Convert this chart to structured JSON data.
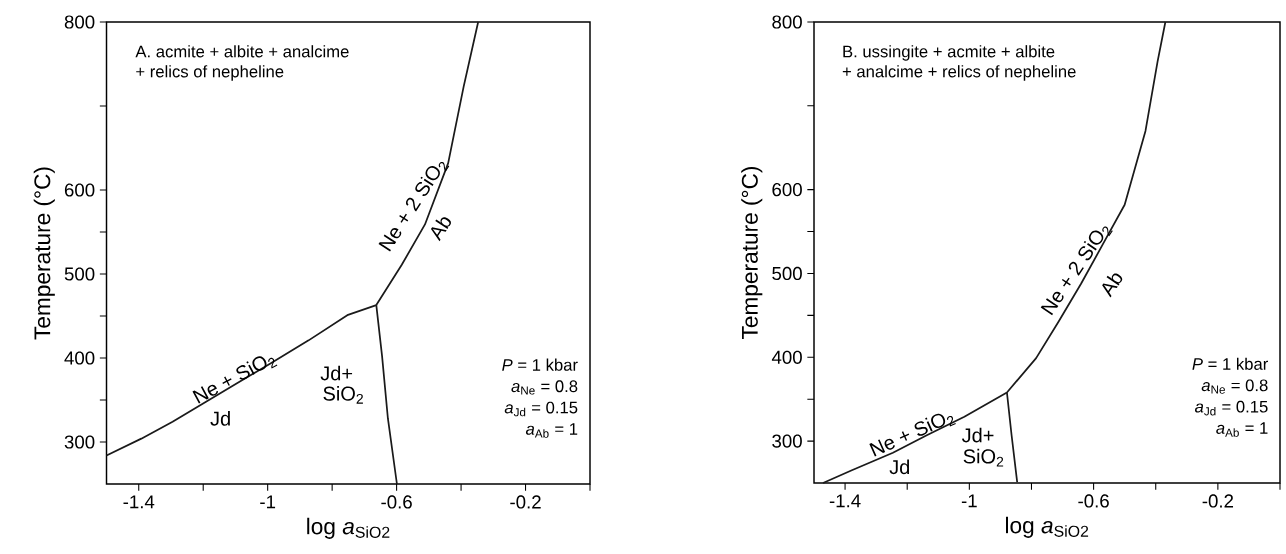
{
  "chart_data": [
    {
      "type": "line",
      "title": "A. acmite + albite + analcime",
      "subtitle": "+ relics of nepheline",
      "xlabel": "log *a*$_{SiO2}$",
      "ylabel": "Temperature (°C)",
      "series": [
        {
          "color": "#1a1a1a",
          "x": [
            -1.5,
            -1.392,
            -1.295,
            -1.199,
            -1.09,
            -0.994,
            -0.873,
            -0.753,
            -0.663
          ],
          "values": [
            284,
            304,
            324,
            346,
            371,
            393,
            421,
            451,
            463
          ]
        },
        {
          "color": "#1a1a1a",
          "x": [
            -0.663,
            -0.584,
            -0.512,
            -0.44,
            -0.392,
            -0.347
          ],
          "values": [
            463,
            511,
            559,
            632,
            723,
            800
          ]
        },
        {
          "color": "#1a1a1a",
          "x": [
            -0.663,
            -0.645,
            -0.627,
            -0.599
          ],
          "values": [
            463,
            402,
            328,
            250
          ]
        }
      ],
      "xlim": [
        -1.5,
        0
      ],
      "ylim": [
        250,
        800
      ],
      "xticks": [
        -1.4,
        {
          "value": -1.2,
          "label": null
        },
        -1,
        {
          "value": -0.8,
          "label": null
        },
        -0.6,
        {
          "value": -0.4,
          "label": null
        },
        -0.2,
        {
          "value": 0,
          "label": null
        }
      ],
      "yticks": [
        300,
        {
          "value": 350,
          "label": null
        },
        400,
        {
          "value": 450,
          "label": null
        },
        500,
        {
          "value": 550,
          "label": null
        },
        600,
        {
          "value": 700,
          "label": null
        },
        800
      ],
      "marker": "none",
      "line_style": "solid",
      "annotations": [
        "Ne + SiO$_{2}$",
        "Jd",
        "Jd+",
        "SiO$_{2}$",
        "Ne + 2 SiO$_{2}$",
        "Ab",
        "*P* = 1 kbar",
        "*a*$_{Ne}$ = 0.8",
        "*a*$_{Jd}$ = 0.15",
        "*a*$_{Ab}$ = 1"
      ]
    },
    {
      "type": "line",
      "title": "B. ussingite + acmite + albite",
      "subtitle": "+ analcime + relics of nepheline",
      "xlabel": "log *a*$_{SiO2}$",
      "ylabel": "Temperature (°C)",
      "series": [
        {
          "color": "#1a1a1a",
          "x": [
            -1.471,
            -1.38,
            -1.246,
            -1.137,
            -1.016,
            -0.879,
            -0.785,
            -0.712,
            -0.64,
            -0.567,
            -0.5,
            -0.433,
            -0.394,
            -0.369
          ],
          "values": [
            250,
            265,
            286,
            307,
            329,
            358,
            399,
            443,
            488,
            537,
            582,
            670,
            753,
            800
          ]
        },
        {
          "color": "#1a1a1a",
          "x": [
            -0.879,
            -0.864,
            -0.846
          ],
          "values": [
            358,
            307,
            251
          ]
        }
      ],
      "xlim": [
        -1.5,
        0
      ],
      "ylim": [
        250,
        800
      ],
      "xticks": [
        -1.4,
        {
          "value": -1.2,
          "label": null
        },
        -1,
        {
          "value": -0.8,
          "label": null
        },
        -0.6,
        {
          "value": -0.4,
          "label": null
        },
        -0.2,
        {
          "value": 0,
          "label": null
        }
      ],
      "yticks": [
        300,
        {
          "value": 350,
          "label": null
        },
        400,
        {
          "value": 450,
          "label": null
        },
        500,
        {
          "value": 550,
          "label": null
        },
        600,
        {
          "value": 700,
          "label": null
        },
        800
      ],
      "marker": "none",
      "line_style": "solid",
      "annotations": [
        "Ne + SiO$_{2}$",
        "Jd",
        "Jd+",
        "SiO$_{2}$",
        "Ne + 2 SiO$_{2}$",
        "Ab",
        "*P* = 1 kbar",
        "*a*$_{Ne}$ = 0.8",
        "*a*$_{Jd}$ = 0.15",
        "*a*$_{Ab}$ = 1"
      ]
    }
  ]
}
